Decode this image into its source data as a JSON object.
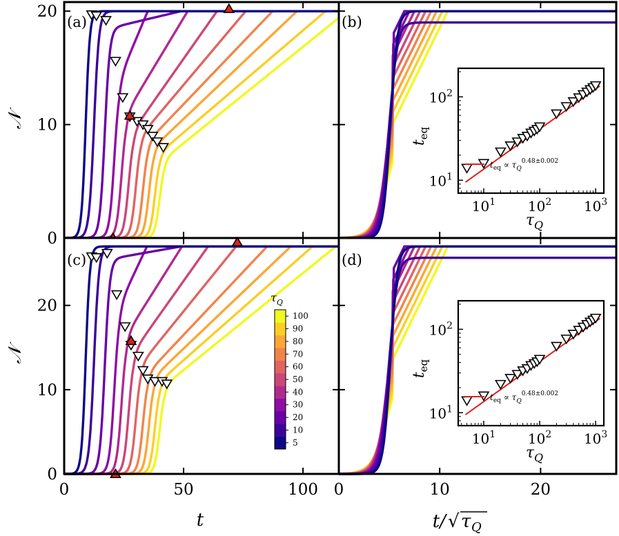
{
  "colors": {
    "frame": "#000000",
    "fit_line": "#e0201a",
    "marker_fill_highlight": "#e0201a",
    "colormap": [
      "#0d0887",
      "#3b049a",
      "#6a00a8",
      "#8f0da4",
      "#b12a90",
      "#cc4778",
      "#e16462",
      "#f1844b",
      "#fca636",
      "#fcce25",
      "#f0f921"
    ]
  },
  "chart_data": [
    {
      "panel": "(a)",
      "type": "line",
      "xlabel": "t",
      "ylabel": "\\mathcal{N}",
      "xlim": [
        0,
        115
      ],
      "ylim": [
        0,
        20.8
      ],
      "xticks": [
        0,
        50,
        100
      ],
      "yticks": [
        0,
        10,
        20
      ],
      "plateau": 20,
      "series": [
        {
          "tau_Q": 5,
          "onset": 9,
          "width": 2.5,
          "slope": 0,
          "knee": 0
        },
        {
          "tau_Q": 10,
          "onset": 12.5,
          "width": 3,
          "slope": 0,
          "knee": 0
        },
        {
          "tau_Q": 20,
          "onset": 17,
          "width": 3,
          "slope": 0.05,
          "knee": 18.5
        },
        {
          "tau_Q": 30,
          "onset": 21,
          "width": 3,
          "slope": 0.5,
          "knee": 14
        },
        {
          "tau_Q": 40,
          "onset": 24,
          "width": 3,
          "slope": 0.35,
          "knee": 11
        },
        {
          "tau_Q": 50,
          "onset": 27,
          "width": 3,
          "slope": 0.3,
          "knee": 9.5
        },
        {
          "tau_Q": 60,
          "onset": 30,
          "width": 3,
          "slope": 0.25,
          "knee": 9
        },
        {
          "tau_Q": 70,
          "onset": 33,
          "width": 3,
          "slope": 0.22,
          "knee": 8.5
        },
        {
          "tau_Q": 80,
          "onset": 35.5,
          "width": 3,
          "slope": 0.2,
          "knee": 8
        },
        {
          "tau_Q": 90,
          "onset": 38,
          "width": 3,
          "slope": 0.18,
          "knee": 7.5
        },
        {
          "tau_Q": 100,
          "onset": 40,
          "width": 3,
          "slope": 0.17,
          "knee": 7
        }
      ],
      "markers_down": [
        [
          11.5,
          19.7
        ],
        [
          13.5,
          19.6
        ],
        [
          17.5,
          19.2
        ],
        [
          21.5,
          15.6
        ],
        [
          24.5,
          12.4
        ],
        [
          27.5,
          10.7
        ],
        [
          30.5,
          10.3
        ],
        [
          33,
          10
        ],
        [
          35,
          9.6
        ],
        [
          37,
          9
        ],
        [
          39,
          8.5
        ],
        [
          41.5,
          8
        ]
      ],
      "markers_up_red": [
        [
          69,
          20.2
        ],
        [
          27.5,
          10.8
        ],
        [
          20.5,
          0
        ]
      ]
    },
    {
      "panel": "(b)",
      "type": "line",
      "xlabel": "",
      "ylabel": "",
      "xlim": [
        0,
        27.5
      ],
      "ylim": [
        0,
        20.8
      ],
      "xticks": [
        0,
        10,
        20
      ],
      "plateau": 20,
      "series_onsets": [
        4.1,
        4.0,
        3.9,
        3.85,
        3.8,
        3.8,
        3.8,
        3.8,
        3.8,
        3.8,
        3.8
      ],
      "inset": {
        "type": "scatter",
        "xlabel": "τ_Q",
        "ylabel": "t_eq",
        "log_x": true,
        "log_y": true,
        "xlim": [
          3.5,
          1400
        ],
        "ylim": [
          7,
          220
        ],
        "xtick_labels": [
          "10^1",
          "10^2",
          "10^3"
        ],
        "ytick_labels": [
          "10^1",
          "10^2"
        ],
        "points_tau": [
          5,
          10,
          20,
          30,
          40,
          50,
          60,
          70,
          80,
          90,
          100,
          200,
          300,
          400,
          500,
          600,
          700,
          800,
          900,
          1000
        ],
        "points_teq": [
          14,
          16,
          22,
          26,
          29,
          32,
          34,
          37,
          39,
          41,
          44,
          63,
          77,
          88,
          98,
          107,
          115,
          123,
          130,
          137
        ],
        "fit_exponent": 0.48,
        "fit_prefactor": 4.5,
        "legend": "t_eq ∝ τ_Q^{0.48±0.002}"
      }
    },
    {
      "panel": "(c)",
      "type": "line",
      "xlabel": "t",
      "ylabel": "\\mathcal{N}",
      "xlim": [
        0,
        115
      ],
      "ylim": [
        0,
        28
      ],
      "xticks": [
        0,
        50,
        100
      ],
      "yticks": [
        0,
        10,
        20
      ],
      "plateau": 27,
      "series": [
        {
          "tau_Q": 5,
          "onset": 9,
          "width": 2.5,
          "slope": 0,
          "knee": 0
        },
        {
          "tau_Q": 10,
          "onset": 12.5,
          "width": 3,
          "slope": 0,
          "knee": 0
        },
        {
          "tau_Q": 20,
          "onset": 17,
          "width": 3,
          "slope": 0.05,
          "knee": 25.5
        },
        {
          "tau_Q": 30,
          "onset": 21,
          "width": 3,
          "slope": 0.6,
          "knee": 20
        },
        {
          "tau_Q": 40,
          "onset": 24,
          "width": 3,
          "slope": 0.45,
          "knee": 16.5
        },
        {
          "tau_Q": 50,
          "onset": 27,
          "width": 3,
          "slope": 0.4,
          "knee": 14.5
        },
        {
          "tau_Q": 60,
          "onset": 30,
          "width": 3,
          "slope": 0.35,
          "knee": 13
        },
        {
          "tau_Q": 70,
          "onset": 33,
          "width": 3,
          "slope": 0.3,
          "knee": 12
        },
        {
          "tau_Q": 80,
          "onset": 35.5,
          "width": 3,
          "slope": 0.27,
          "knee": 11.5
        },
        {
          "tau_Q": 90,
          "onset": 38,
          "width": 3,
          "slope": 0.25,
          "knee": 11
        },
        {
          "tau_Q": 100,
          "onset": 40,
          "width": 3,
          "slope": 0.23,
          "knee": 10.5
        }
      ],
      "markers_down": [
        [
          11.5,
          25.8
        ],
        [
          13.5,
          25.7
        ],
        [
          18,
          26.2
        ],
        [
          22,
          21.3
        ],
        [
          25.5,
          17.5
        ],
        [
          28,
          15.3
        ],
        [
          31,
          14
        ],
        [
          33,
          12.3
        ],
        [
          35,
          11.3
        ],
        [
          38,
          11
        ],
        [
          41,
          11
        ],
        [
          43,
          10.7
        ]
      ],
      "markers_up_red": [
        [
          72.5,
          27.5
        ],
        [
          28,
          15.8
        ],
        [
          21.5,
          0
        ]
      ],
      "colorbar": {
        "title": "τ_Q",
        "tick_labels": [
          "5",
          "10",
          "20",
          "30",
          "40",
          "50",
          "60",
          "70",
          "80",
          "90",
          "100"
        ]
      }
    },
    {
      "panel": "(d)",
      "type": "line",
      "xlabel": "t/√τ_Q",
      "ylabel": "",
      "xlim": [
        0,
        27.5
      ],
      "ylim": [
        0,
        28
      ],
      "xticks": [
        0,
        10,
        20
      ],
      "plateau": 27,
      "series_onsets": [
        4.1,
        4.0,
        3.9,
        3.85,
        3.8,
        3.8,
        3.8,
        3.8,
        3.8,
        3.8,
        3.8
      ],
      "inset": {
        "type": "scatter",
        "xlabel": "τ_Q",
        "ylabel": "t_eq",
        "log_x": true,
        "log_y": true,
        "xlim": [
          3.5,
          1400
        ],
        "ylim": [
          7,
          220
        ],
        "xtick_labels": [
          "10^1",
          "10^2",
          "10^3"
        ],
        "ytick_labels": [
          "10^1",
          "10^2"
        ],
        "points_tau": [
          5,
          10,
          20,
          30,
          40,
          50,
          60,
          70,
          80,
          90,
          100,
          200,
          300,
          400,
          500,
          600,
          700,
          800,
          900,
          1000
        ],
        "points_teq": [
          14,
          16,
          22,
          26,
          29,
          32,
          34,
          37,
          39,
          41,
          44,
          63,
          77,
          88,
          98,
          107,
          115,
          123,
          130,
          137
        ],
        "fit_exponent": 0.48,
        "fit_prefactor": 4.5,
        "legend": "t_eq ∝ τ_Q^{0.48±0.002}"
      }
    }
  ]
}
